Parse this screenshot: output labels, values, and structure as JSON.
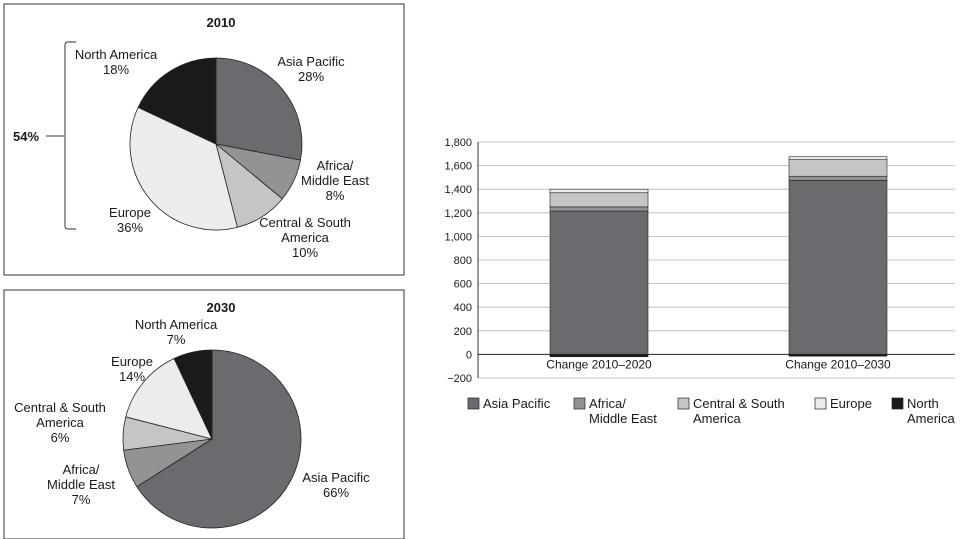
{
  "palette": {
    "Asia Pacific": "#6b6b6f",
    "Africa/Middle East": "#939395",
    "Central & South America": "#c5c5c7",
    "Europe": "#ececee",
    "North America": "#1a1a1a"
  },
  "chart_data": [
    {
      "type": "pie",
      "title": "2010",
      "slices": [
        {
          "name": "Asia Pacific",
          "value": 28,
          "label": [
            "Asia Pacific",
            "28%"
          ]
        },
        {
          "name": "Africa/Middle East",
          "value": 8,
          "label": [
            "Africa/",
            "Middle East",
            "8%"
          ]
        },
        {
          "name": "Central & South America",
          "value": 10,
          "label": [
            "Central & South",
            "America",
            "10%"
          ]
        },
        {
          "name": "Europe",
          "value": 36,
          "label": [
            "Europe",
            "36%"
          ]
        },
        {
          "name": "North America",
          "value": 18,
          "label": [
            "North America",
            "18%"
          ]
        }
      ],
      "annotation": "54%"
    },
    {
      "type": "pie",
      "title": "2030",
      "slices": [
        {
          "name": "Asia Pacific",
          "value": 66,
          "label": [
            "Asia Pacific",
            "66%"
          ]
        },
        {
          "name": "Africa/Middle East",
          "value": 7,
          "label": [
            "Africa/",
            "Middle East",
            "7%"
          ]
        },
        {
          "name": "Central & South America",
          "value": 6,
          "label": [
            "Central & South",
            "America",
            "6%"
          ]
        },
        {
          "name": "Europe",
          "value": 14,
          "label": [
            "Europe",
            "14%"
          ]
        },
        {
          "name": "North America",
          "value": 7,
          "label": [
            "North America",
            "7%"
          ]
        }
      ]
    },
    {
      "type": "bar",
      "stacked": true,
      "categories": [
        "Change 2010–2020",
        "Change 2010–2030"
      ],
      "series": [
        {
          "name": "Asia Pacific",
          "values": [
            1215,
            1475
          ]
        },
        {
          "name": "Africa/Middle East",
          "values": [
            35,
            35
          ]
        },
        {
          "name": "Central & South America",
          "values": [
            120,
            140
          ]
        },
        {
          "name": "Europe",
          "values": [
            30,
            25
          ]
        },
        {
          "name": "North America",
          "values": [
            -20,
            -15
          ]
        }
      ],
      "ylim": [
        -200,
        1800
      ],
      "yticks": [
        -200,
        0,
        200,
        400,
        600,
        800,
        1000,
        1200,
        1400,
        1600,
        1800
      ],
      "ytick_labels": [
        "−200",
        "0",
        "200",
        "400",
        "600",
        "800",
        "1,000",
        "1,200",
        "1,400",
        "1,600",
        "1,800"
      ],
      "grid": true,
      "legend": [
        {
          "name": "Asia Pacific",
          "label": [
            "Asia Pacific"
          ]
        },
        {
          "name": "Africa/Middle East",
          "label": [
            "Africa/",
            "Middle East"
          ]
        },
        {
          "name": "Central & South America",
          "label": [
            "Central & South",
            "America"
          ]
        },
        {
          "name": "Europe",
          "label": [
            "Europe"
          ]
        },
        {
          "name": "North America",
          "label": [
            "North",
            "America"
          ]
        }
      ],
      "legend_position": "bottom"
    }
  ]
}
